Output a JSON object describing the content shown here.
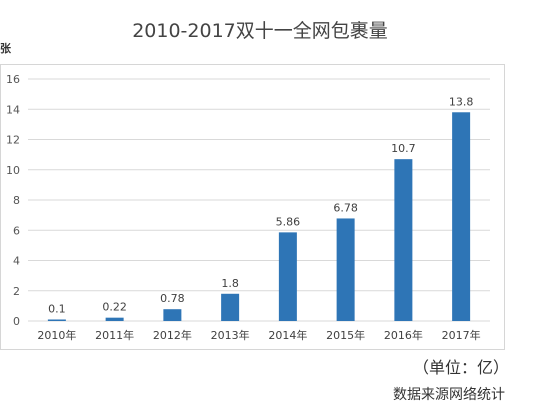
{
  "chart_data": {
    "type": "bar",
    "title": "2010-2017双十一全网包裹量",
    "ylabel": "张",
    "categories": [
      "2010年",
      "2011年",
      "2012年",
      "2013年",
      "2014年",
      "2015年",
      "2016年",
      "2017年"
    ],
    "values": [
      0.1,
      0.22,
      0.78,
      1.8,
      5.86,
      6.78,
      10.7,
      13.8
    ],
    "data_labels": [
      "0.1",
      "0.22",
      "0.78",
      "1.8",
      "5.86",
      "6.78",
      "10.7",
      "13.8"
    ],
    "ylim": [
      0,
      16
    ],
    "yticks": [
      "0",
      "2",
      "4",
      "6",
      "8",
      "10",
      "12",
      "14",
      "16"
    ],
    "grid": true,
    "bar_color": "#2E75B6"
  },
  "notes": {
    "unit": "（单位：亿）",
    "source": "数据来源网络统计"
  }
}
